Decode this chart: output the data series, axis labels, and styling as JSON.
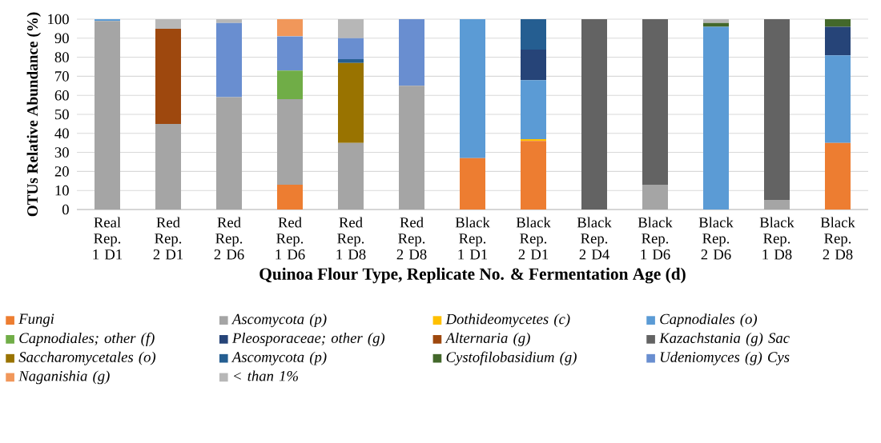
{
  "chart_data": {
    "type": "bar",
    "stacked": true,
    "xlabel": "Quinoa Flour Type, Replicate No.  & Fermentation Age (d)",
    "ylabel": "OTUs Relative Abundance (%)",
    "categories": [
      "Real Rep. 1 D1",
      "Red Rep. 2 D1",
      "Red Rep. 2 D6",
      "Red Rep. 1 D6",
      "Red Rep. 1 D8",
      "Red Rep. 2 D8",
      "Black Rep. 1 D1",
      "Black Rep. 2 D1",
      "Black Rep. 2 D4",
      "Black Rep. 1 D6",
      "Black Rep. 2 D6",
      "Black Rep. 1 D8",
      "Black Rep. 2 D8"
    ],
    "ylim": [
      0,
      100
    ],
    "yticks": [
      0,
      10,
      20,
      30,
      40,
      50,
      60,
      70,
      80,
      90,
      100
    ],
    "grid": "y",
    "legend": "bottom",
    "series": [
      {
        "name": "Fungi",
        "color": "#ed7d31",
        "values": [
          null,
          null,
          null,
          13,
          null,
          null,
          27,
          36,
          null,
          null,
          null,
          null,
          35
        ]
      },
      {
        "name": "Ascomycota (p)",
        "color": "#a5a5a5",
        "values": [
          99,
          45,
          59,
          45,
          35,
          65,
          null,
          null,
          null,
          13,
          null,
          5,
          null
        ]
      },
      {
        "name": "Dothideomycetes (c)",
        "color": "#ffc000",
        "values": [
          null,
          null,
          null,
          null,
          null,
          null,
          null,
          1,
          null,
          null,
          null,
          null,
          null
        ]
      },
      {
        "name": "Capnodiales (o)",
        "color": "#5b9bd5",
        "values": [
          1,
          null,
          null,
          null,
          null,
          null,
          73,
          31,
          null,
          null,
          96,
          null,
          46
        ]
      },
      {
        "name": "Capnodiales; other (f)",
        "color": "#70ad47",
        "values": [
          null,
          null,
          null,
          15,
          null,
          null,
          null,
          null,
          null,
          null,
          null,
          null,
          null
        ]
      },
      {
        "name": "Pleosporaceae; other (g)",
        "color": "#264478",
        "values": [
          null,
          null,
          null,
          null,
          null,
          null,
          null,
          16,
          null,
          null,
          null,
          null,
          15
        ]
      },
      {
        "name": "Alternaria (g)",
        "color": "#9e480e",
        "values": [
          null,
          50,
          null,
          null,
          null,
          null,
          null,
          null,
          null,
          null,
          null,
          null,
          null
        ]
      },
      {
        "name": "Kazachstania (g) Sac",
        "color": "#636363",
        "values": [
          null,
          null,
          null,
          null,
          null,
          null,
          null,
          null,
          100,
          87,
          null,
          95,
          null
        ]
      },
      {
        "name": "Saccharomycetales (o)",
        "color": "#997300",
        "values": [
          null,
          null,
          null,
          null,
          42,
          null,
          null,
          null,
          null,
          null,
          null,
          null,
          null
        ]
      },
      {
        "name": "Ascomycota (p)",
        "color": "#255e91",
        "values": [
          null,
          null,
          null,
          null,
          2,
          null,
          null,
          16,
          null,
          null,
          null,
          null,
          null
        ]
      },
      {
        "name": "Cystofilobasidium (g)",
        "color": "#43682b",
        "values": [
          null,
          null,
          null,
          null,
          null,
          null,
          null,
          null,
          null,
          null,
          2,
          null,
          4
        ]
      },
      {
        "name": "Udeniomyces (g) Cys",
        "color": "#698ed0",
        "values": [
          null,
          null,
          39,
          18,
          11,
          35,
          null,
          null,
          null,
          null,
          null,
          null,
          null
        ]
      },
      {
        "name": "Naganishia (g)",
        "color": "#f1975a",
        "values": [
          null,
          null,
          null,
          9,
          null,
          null,
          null,
          null,
          null,
          null,
          null,
          null,
          null
        ]
      },
      {
        "name": "< than 1%",
        "color": "#b7b7b7",
        "values": [
          null,
          5,
          2,
          null,
          10,
          null,
          null,
          null,
          null,
          null,
          2,
          null,
          null
        ]
      }
    ]
  }
}
